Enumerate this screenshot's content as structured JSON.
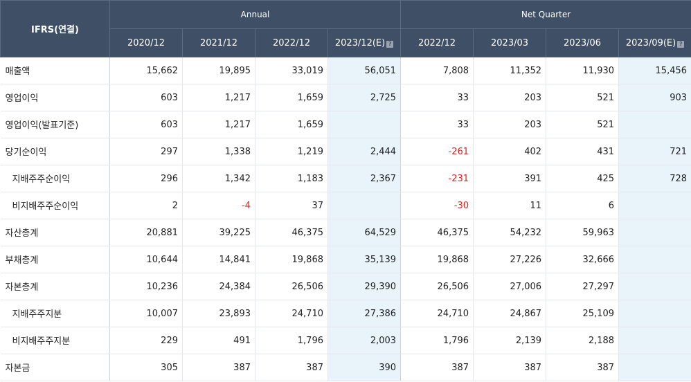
{
  "header": {
    "corner": "IFRS(연결)",
    "groups": {
      "annual": "Annual",
      "quarter": "Net Quarter"
    },
    "columns": [
      "2020/12",
      "2021/12",
      "2022/12",
      "2023/12(E)",
      "2022/12",
      "2023/03",
      "2023/06",
      "2023/09(E)"
    ],
    "estimate_icon": "?"
  },
  "rows": [
    {
      "label": "매출액",
      "values": [
        "15,662",
        "19,895",
        "33,019",
        "56,051",
        "7,808",
        "11,352",
        "11,930",
        "15,456"
      ]
    },
    {
      "label": "영업이익",
      "values": [
        "603",
        "1,217",
        "1,659",
        "2,725",
        "33",
        "203",
        "521",
        "903"
      ]
    },
    {
      "label": "영업이익(발표기준)",
      "values": [
        "603",
        "1,217",
        "1,659",
        "",
        "33",
        "203",
        "521",
        ""
      ]
    },
    {
      "label": "당기순이익",
      "values": [
        "297",
        "1,338",
        "1,219",
        "2,444",
        "-261",
        "402",
        "431",
        "721"
      ]
    },
    {
      "label": "지배주주순이익",
      "values": [
        "296",
        "1,342",
        "1,183",
        "2,367",
        "-231",
        "391",
        "425",
        "728"
      ]
    },
    {
      "label": "비지배주주순이익",
      "values": [
        "2",
        "-4",
        "37",
        "",
        "-30",
        "11",
        "6",
        ""
      ]
    },
    {
      "label": "자산총계",
      "values": [
        "20,881",
        "39,225",
        "46,375",
        "64,529",
        "46,375",
        "54,232",
        "59,963",
        ""
      ]
    },
    {
      "label": "부채총계",
      "values": [
        "10,644",
        "14,841",
        "19,868",
        "35,139",
        "19,868",
        "27,226",
        "32,666",
        ""
      ]
    },
    {
      "label": "자본총계",
      "values": [
        "10,236",
        "24,384",
        "26,506",
        "29,390",
        "26,506",
        "27,006",
        "27,297",
        ""
      ]
    },
    {
      "label": "지배주주지분",
      "values": [
        "10,007",
        "23,893",
        "24,710",
        "27,386",
        "24,710",
        "24,867",
        "25,109",
        ""
      ]
    },
    {
      "label": "비지배주주지분",
      "values": [
        "229",
        "491",
        "1,796",
        "2,003",
        "1,796",
        "2,139",
        "2,188",
        ""
      ]
    },
    {
      "label": "자본금",
      "values": [
        "305",
        "387",
        "387",
        "390",
        "387",
        "387",
        "387",
        ""
      ]
    }
  ],
  "colors": {
    "header_bg": "#3f4f66",
    "estimate_bg": "#e8f4fa",
    "negative": "#e02020"
  }
}
